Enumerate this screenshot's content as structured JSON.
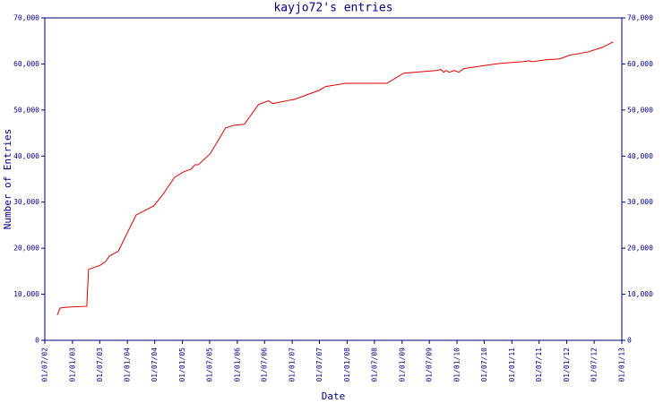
{
  "chart_data": {
    "type": "line",
    "title": "kayjo72's entries",
    "x_label": "Date",
    "y_label": "Number of Entries",
    "xlim": [
      "2002-07-01",
      "2013-01-01"
    ],
    "xticks": [
      {
        "value": "2002-07-01",
        "label": "01/07/02"
      },
      {
        "value": "2003-01-01",
        "label": "01/01/03"
      },
      {
        "value": "2003-07-01",
        "label": "01/07/03"
      },
      {
        "value": "2004-01-01",
        "label": "01/01/04"
      },
      {
        "value": "2004-07-01",
        "label": "01/07/04"
      },
      {
        "value": "2005-01-01",
        "label": "01/01/05"
      },
      {
        "value": "2005-07-01",
        "label": "01/07/05"
      },
      {
        "value": "2006-01-01",
        "label": "01/01/06"
      },
      {
        "value": "2006-07-01",
        "label": "01/07/06"
      },
      {
        "value": "2007-01-01",
        "label": "01/01/07"
      },
      {
        "value": "2007-07-01",
        "label": "01/07/07"
      },
      {
        "value": "2008-01-01",
        "label": "01/01/08"
      },
      {
        "value": "2008-07-01",
        "label": "01/07/08"
      },
      {
        "value": "2009-01-01",
        "label": "01/01/09"
      },
      {
        "value": "2009-07-01",
        "label": "01/07/09"
      },
      {
        "value": "2010-01-01",
        "label": "01/01/10"
      },
      {
        "value": "2010-07-01",
        "label": "01/07/10"
      },
      {
        "value": "2011-01-01",
        "label": "01/01/11"
      },
      {
        "value": "2011-07-01",
        "label": "01/07/11"
      },
      {
        "value": "2012-01-01",
        "label": "01/01/12"
      },
      {
        "value": "2012-07-01",
        "label": "01/07/12"
      },
      {
        "value": "2013-01-01",
        "label": "01/01/13"
      }
    ],
    "ylim": [
      0,
      70000
    ],
    "yticks": [
      0,
      {
        "value": 10000,
        "label": "10,000"
      },
      {
        "value": 20000,
        "label": "20,000"
      },
      {
        "value": 30000,
        "label": "30,000"
      },
      {
        "value": 40000,
        "label": "40,000"
      },
      {
        "value": 50000,
        "label": "50,000"
      },
      {
        "value": 60000,
        "label": "60,000"
      },
      {
        "value": 70000,
        "label": "70,000"
      }
    ],
    "right_axis_ticks": true,
    "x": [
      "2002-09-22",
      "2002-10-10",
      "2002-11-25",
      "2003-04-06",
      "2003-04-18",
      "2003-07-04",
      "2003-08-10",
      "2003-09-03",
      "2003-11-01",
      "2004-02-28",
      "2004-06-25",
      "2004-08-25",
      "2004-11-10",
      "2005-01-10",
      "2005-03-02",
      "2005-03-25",
      "2005-04-16",
      "2005-07-05",
      "2005-10-15",
      "2005-12-12",
      "2006-02-17",
      "2006-05-22",
      "2006-07-10",
      "2006-07-28",
      "2006-08-25",
      "2006-12-10",
      "2007-01-15",
      "2007-07-01",
      "2007-08-12",
      "2007-12-22",
      "2008-09-22",
      "2009-01-12",
      "2009-03-22",
      "2009-08-25",
      "2009-09-15",
      "2009-10-05",
      "2009-10-20",
      "2009-11-10",
      "2009-12-15",
      "2010-01-12",
      "2010-02-15",
      "2010-07-10",
      "2010-10-10",
      "2010-12-22",
      "2011-03-15",
      "2011-04-25",
      "2011-05-20",
      "2011-08-15",
      "2011-11-15",
      "2012-01-20",
      "2012-05-20",
      "2012-08-25",
      "2012-11-05"
    ],
    "series": [
      {
        "name": "entries",
        "color": "#dd0000",
        "values": [
          5500,
          7000,
          7200,
          7400,
          15400,
          16300,
          17100,
          18300,
          19300,
          27200,
          29200,
          31700,
          35400,
          36600,
          37200,
          38100,
          38100,
          40500,
          46100,
          46700,
          46900,
          51200,
          51800,
          52000,
          51400,
          52100,
          52300,
          54300,
          55100,
          55800,
          55800,
          58000,
          58200,
          58600,
          58800,
          58200,
          58600,
          58200,
          58600,
          58200,
          59000,
          59700,
          60100,
          60300,
          60500,
          60700,
          60500,
          60900,
          61100,
          61900,
          62600,
          63600,
          64800
        ]
      }
    ],
    "axis_color": "#000080"
  }
}
